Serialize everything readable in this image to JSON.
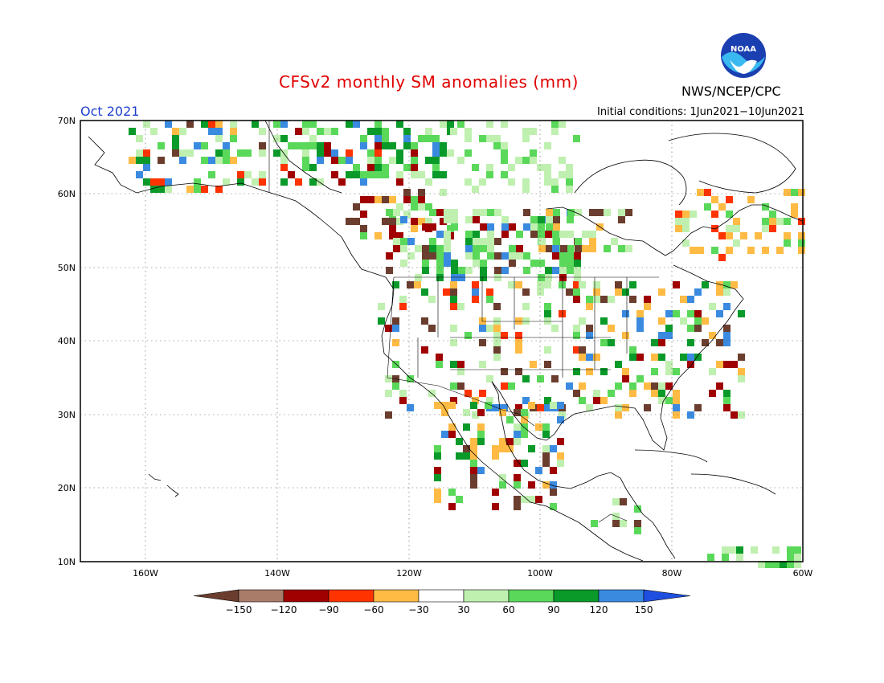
{
  "header": {
    "title": "CFSv2 monthly SM anomalies (mm)",
    "month": "Oct 2021",
    "initial_conditions": "Initial conditions: 1Jun2021−10Jun2021",
    "agency": "NWS/NCEP/CPC",
    "logo_text": "NOAA"
  },
  "axes": {
    "lat_labels": [
      "70N",
      "60N",
      "50N",
      "40N",
      "30N",
      "20N",
      "10N"
    ],
    "lon_labels": [
      "160W",
      "140W",
      "120W",
      "100W",
      "80W",
      "60W"
    ]
  },
  "colorbar": {
    "labels": [
      "−150",
      "−120",
      "−90",
      "−60",
      "−30",
      "30",
      "60",
      "90",
      "120",
      "150"
    ],
    "colors": [
      "#6b3d2e",
      "#a97c6a",
      "#a00000",
      "#ff3300",
      "#ffbb44",
      "#ffffff",
      "#bff0b0",
      "#5ad85a",
      "#0a9a2a",
      "#3a8ae0",
      "#1f4fe0"
    ]
  },
  "colors": {
    "title": "#e00000",
    "month": "#1f3fd0"
  }
}
